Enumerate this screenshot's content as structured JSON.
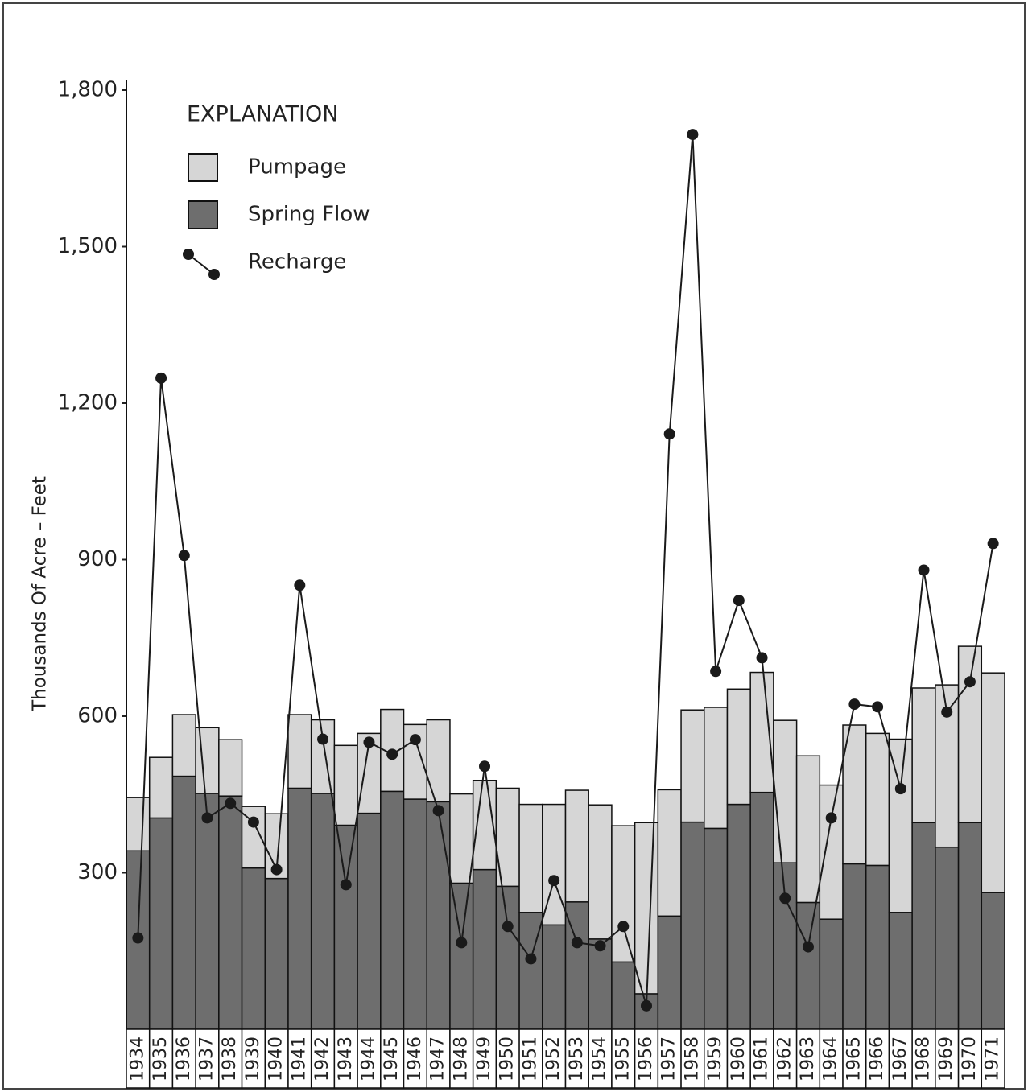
{
  "chart_data": {
    "type": "bar",
    "y_label": "Thousands Of Acre – Feet",
    "legend_title": "EXPLANATION",
    "legend": "upper-left",
    "categories": [
      "1934",
      "1935",
      "1936",
      "1937",
      "1938",
      "1939",
      "1940",
      "1941",
      "1942",
      "1943",
      "1944",
      "1945",
      "1946",
      "1947",
      "1948",
      "1949",
      "1950",
      "1951",
      "1952",
      "1953",
      "1954",
      "1955",
      "1956",
      "1957",
      "1958",
      "1959",
      "1960",
      "1961",
      "1962",
      "1963",
      "1964",
      "1965",
      "1966",
      "1967",
      "1968",
      "1969",
      "1970",
      "1971"
    ],
    "series": [
      {
        "name": "Pumpage",
        "type": "bar",
        "color": "#d6d6d6",
        "values": [
          102,
          116,
          118,
          126,
          108,
          118,
          124,
          141,
          141,
          153,
          153,
          157,
          143,
          157,
          171,
          171,
          188,
          207,
          231,
          214,
          257,
          261,
          328,
          242,
          215,
          232,
          221,
          230,
          273,
          281,
          257,
          266,
          253,
          332,
          258,
          311,
          338,
          421
        ]
      },
      {
        "name": "Spring Flow",
        "type": "bar",
        "color": "#6e6e6e",
        "values": [
          342,
          405,
          485,
          452,
          447,
          309,
          289,
          462,
          452,
          391,
          414,
          456,
          441,
          436,
          280,
          306,
          274,
          224,
          200,
          244,
          173,
          129,
          68,
          217,
          397,
          385,
          431,
          454,
          319,
          243,
          211,
          317,
          314,
          224,
          396,
          349,
          396,
          262
        ]
      },
      {
        "name": "Recharge",
        "type": "line",
        "color": "#1a1a1a",
        "values": [
          175,
          1248,
          908,
          405,
          433,
          397,
          306,
          851,
          556,
          277,
          550,
          527,
          555,
          419,
          166,
          504,
          197,
          135,
          285,
          166,
          160,
          197,
          45,
          1141,
          1715,
          686,
          822,
          712,
          251,
          158,
          405,
          623,
          618,
          461,
          880,
          608,
          666,
          931
        ]
      }
    ],
    "ylim": [
      0,
      1800
    ],
    "yticks": [
      300,
      600,
      900,
      {
        "value": 1200,
        "label": "1,200"
      },
      {
        "value": 1500,
        "label": "1,500"
      },
      {
        "value": 1800,
        "label": "1,800"
      }
    ]
  }
}
